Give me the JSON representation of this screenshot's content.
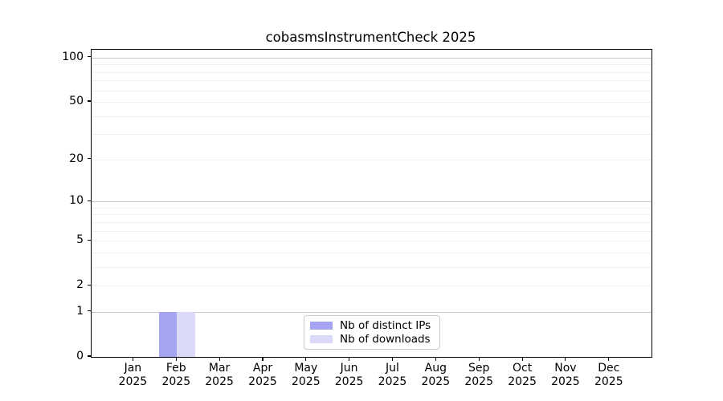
{
  "chart_data": {
    "type": "bar",
    "title": "cobasmsInstrumentCheck 2025",
    "categories": [
      {
        "month": "Jan",
        "year": "2025"
      },
      {
        "month": "Feb",
        "year": "2025"
      },
      {
        "month": "Mar",
        "year": "2025"
      },
      {
        "month": "Apr",
        "year": "2025"
      },
      {
        "month": "May",
        "year": "2025"
      },
      {
        "month": "Jun",
        "year": "2025"
      },
      {
        "month": "Jul",
        "year": "2025"
      },
      {
        "month": "Aug",
        "year": "2025"
      },
      {
        "month": "Sep",
        "year": "2025"
      },
      {
        "month": "Oct",
        "year": "2025"
      },
      {
        "month": "Nov",
        "year": "2025"
      },
      {
        "month": "Dec",
        "year": "2025"
      }
    ],
    "series": [
      {
        "name": "Nb of distinct IPs",
        "color": "#a4a4f0",
        "values": [
          0,
          1,
          0,
          0,
          0,
          0,
          0,
          0,
          0,
          0,
          0,
          0
        ]
      },
      {
        "name": "Nb of downloads",
        "color": "#dadaf8",
        "values": [
          0,
          1,
          0,
          0,
          0,
          0,
          0,
          0,
          0,
          0,
          0,
          0
        ]
      }
    ],
    "yscale": "log1p",
    "ylim": [
      0,
      113
    ],
    "yticks": [
      0,
      1,
      2,
      5,
      10,
      20,
      50,
      100
    ],
    "major_gridlines": [
      1,
      10,
      100
    ],
    "minor_gridlines": [
      2,
      3,
      4,
      5,
      6,
      7,
      8,
      9,
      20,
      30,
      40,
      50,
      60,
      70,
      80,
      90
    ],
    "xlabel": "",
    "ylabel": "",
    "legend_position": "lower center",
    "colors": {
      "major_grid": "#c8c8c8",
      "minor_grid": "#efefef",
      "spine": "#000000",
      "background": "#ffffff",
      "text": "#000000"
    }
  }
}
